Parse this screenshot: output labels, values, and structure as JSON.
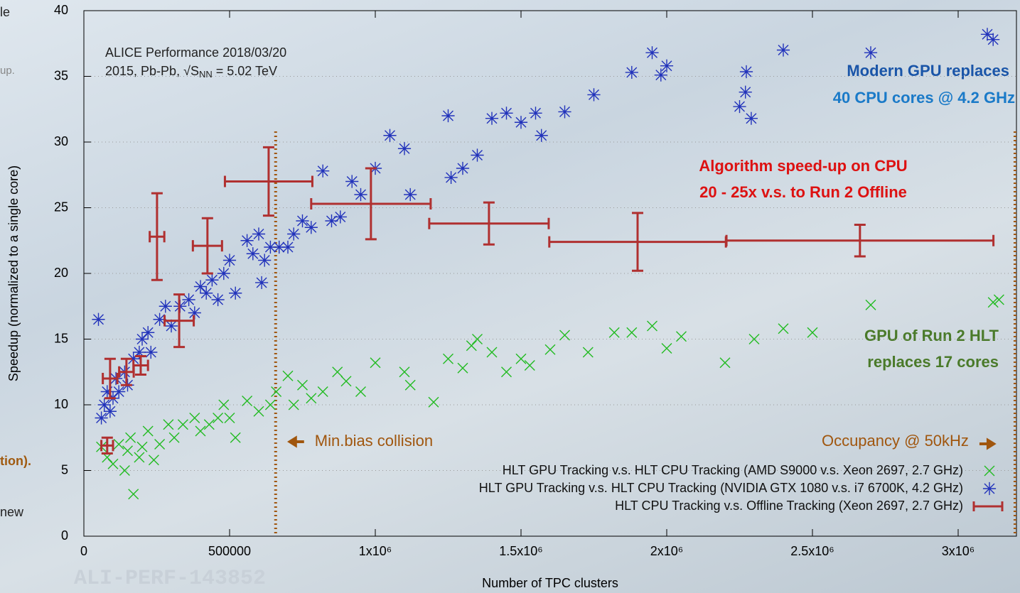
{
  "chart_data": {
    "type": "scatter",
    "xlabel": "Number of TPC clusters",
    "ylabel": "Speedup (normalized to a single core)",
    "xlim": [
      0,
      3200000
    ],
    "ylim": [
      0,
      40
    ],
    "xticks": [
      0,
      500000,
      {
        "value": 1000000,
        "label": "1x10⁶"
      },
      {
        "value": 1500000,
        "label": "1.5x10⁶"
      },
      {
        "value": 2000000,
        "label": "2x10⁶"
      },
      {
        "value": 2500000,
        "label": "2.5x10⁶"
      },
      {
        "value": 3000000,
        "label": "3x10⁶"
      }
    ],
    "yticks": [
      0,
      5,
      10,
      15,
      20,
      25,
      30,
      35,
      40
    ],
    "grid": true,
    "legend": "lower right",
    "series": [
      {
        "name": "HLT GPU Tracking v.s. HLT CPU Tracking (AMD S9000 v.s. Xeon 2697, 2.7 GHz)",
        "color": "#22bb22",
        "marker": "x",
        "x": [
          60000,
          80000,
          100000,
          120000,
          140000,
          150000,
          160000,
          170000,
          190000,
          200000,
          220000,
          240000,
          260000,
          290000,
          310000,
          340000,
          380000,
          400000,
          430000,
          460000,
          480000,
          500000,
          520000,
          560000,
          600000,
          640000,
          660000,
          700000,
          720000,
          750000,
          780000,
          820000,
          870000,
          900000,
          950000,
          1000000,
          1100000,
          1120000,
          1200000,
          1250000,
          1300000,
          1330000,
          1350000,
          1400000,
          1450000,
          1500000,
          1530000,
          1600000,
          1650000,
          1730000,
          1820000,
          1880000,
          1950000,
          2000000,
          2050000,
          2200000,
          2300000,
          2400000,
          2500000,
          2700000,
          3120000,
          3140000
        ],
        "values": [
          6.8,
          6,
          5.5,
          7,
          5,
          6.5,
          7.5,
          3.2,
          6,
          6.8,
          8,
          5.8,
          7,
          8.5,
          7.5,
          8.5,
          9,
          8,
          8.5,
          9,
          10,
          9,
          7.5,
          10.3,
          9.5,
          10,
          11,
          12.2,
          10,
          11.5,
          10.5,
          11,
          12.5,
          11.8,
          11,
          13.2,
          12.5,
          11.5,
          10.2,
          13.5,
          12.8,
          14.5,
          15,
          14,
          12.5,
          13.5,
          13,
          14.2,
          15.3,
          14,
          15.5,
          15.5,
          16,
          14.3,
          15.2,
          13.2,
          15,
          15.8,
          15.5,
          17.6,
          17.8,
          18
        ]
      },
      {
        "name": "HLT GPU Tracking v.s. HLT CPU Tracking (NVIDIA GTX 1080 v.s. i7 6700K, 4.2 GHz)",
        "color": "#2233bb",
        "marker": "star",
        "x": [
          50000,
          60000,
          70000,
          80000,
          90000,
          100000,
          110000,
          120000,
          140000,
          150000,
          170000,
          190000,
          200000,
          220000,
          230000,
          260000,
          280000,
          300000,
          330000,
          360000,
          380000,
          400000,
          420000,
          440000,
          460000,
          480000,
          500000,
          520000,
          560000,
          580000,
          600000,
          610000,
          620000,
          640000,
          670000,
          700000,
          720000,
          750000,
          780000,
          820000,
          850000,
          880000,
          920000,
          950000,
          1000000,
          1050000,
          1100000,
          1120000,
          1250000,
          1260000,
          1300000,
          1350000,
          1400000,
          1450000,
          1500000,
          1550000,
          1570000,
          1650000,
          1750000,
          1880000,
          1950000,
          1980000,
          2000000,
          2250000,
          2270000,
          2290000,
          2400000,
          2700000,
          3100000,
          3120000
        ],
        "values": [
          16.5,
          9,
          10,
          11,
          9.5,
          10.5,
          12,
          11,
          12.5,
          11.5,
          13.5,
          14,
          15,
          15.5,
          14,
          16.5,
          17.5,
          16,
          17.5,
          18,
          17,
          19,
          18.5,
          19.5,
          18,
          20,
          21,
          18.5,
          22.5,
          21.5,
          23,
          19.3,
          21,
          22,
          22,
          22,
          23,
          24,
          23.5,
          27.8,
          24,
          24.3,
          27,
          26,
          28,
          30.5,
          29.5,
          26,
          32,
          27.3,
          28,
          29,
          31.8,
          32.2,
          31.5,
          32.2,
          30.5,
          32.3,
          33.6,
          35.3,
          36.8,
          35.1,
          35.8,
          32.7,
          33.8,
          31.8,
          37,
          36.8,
          38.2,
          37.8
        ]
      },
      {
        "name": "HLT CPU Tracking v.s. Offline Tracking (Xeon 2697, 2.7 GHz)",
        "color": "#b03030",
        "marker": "errorbar",
        "x": [
          80000,
          90000,
          146000,
          195000,
          251000,
          327000,
          424000,
          634000,
          985000,
          1390000,
          1900000,
          2663000
        ],
        "values": [
          6.9,
          12,
          12.5,
          13,
          22.8,
          16.4,
          22.1,
          27,
          25.3,
          23.8,
          22.4,
          22.5
        ],
        "xerr": [
          20000,
          25000,
          25000,
          25000,
          25000,
          50000,
          50000,
          150000,
          205000,
          205000,
          303000,
          458000
        ],
        "yerr": [
          0.6,
          1.5,
          1,
          0.7,
          3.3,
          2,
          2.1,
          2.6,
          2.7,
          1.6,
          2.2,
          1.2
        ]
      }
    ],
    "vlines": [
      {
        "x": 658000,
        "text": "Min.bias collision"
      },
      {
        "x": 3195000,
        "text": "Occupancy @ 50kHz"
      }
    ],
    "annotations": {
      "performance": "ALICE Performance 2018/03/20",
      "system": [
        "2015, Pb-Pb, √S",
        "NN",
        " = 5.02 TeV"
      ],
      "gpu_modern": [
        "Modern GPU replaces",
        "40 CPU cores @ 4.2 GHz"
      ],
      "cpu_algo": [
        "Algorithm speed-up on CPU",
        "20 - 25x v.s. to Run 2 Offline"
      ],
      "gpu_run2": [
        "GPU of Run 2 HLT",
        "replaces 17 cores"
      ],
      "watermark": "ALI-PERF-143852"
    }
  },
  "slide_fragments": [
    "le",
    "up.",
    "tion).",
    "new"
  ]
}
